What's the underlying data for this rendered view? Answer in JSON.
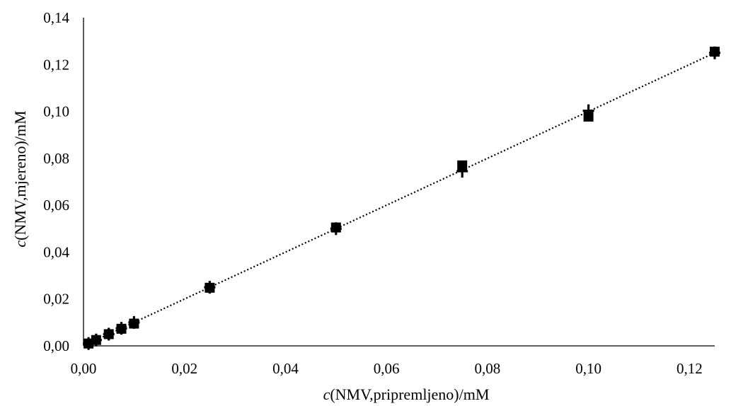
{
  "chart_data": {
    "type": "scatter",
    "title": "",
    "xlabel_prefix": "c",
    "xlabel_rest": "(NMV,pripremljeno)/mM",
    "ylabel_prefix": "c",
    "ylabel_rest": "(NMV,mjereno)/mM",
    "xlim": [
      0,
      0.125
    ],
    "ylim": [
      0,
      0.14
    ],
    "x_ticks": [
      0,
      0.02,
      0.04,
      0.06,
      0.08,
      0.1,
      0.12
    ],
    "x_tick_labels": [
      "0,00",
      "0,02",
      "0,04",
      "0,06",
      "0,08",
      "0,10",
      "0,12"
    ],
    "y_ticks": [
      0,
      0.02,
      0.04,
      0.06,
      0.08,
      0.1,
      0.12,
      0.14
    ],
    "y_tick_labels": [
      "0,00",
      "0,02",
      "0,04",
      "0,06",
      "0,08",
      "0,10",
      "0,12",
      "0,14"
    ],
    "grid": false,
    "legend": "none",
    "colors": {
      "marker": "#000000",
      "trendline": "#000000"
    },
    "series": [
      {
        "marker": "square",
        "x": [
          0.001,
          0.0025,
          0.005,
          0.0075,
          0.01,
          0.025,
          0.05,
          0.075,
          0.1,
          0.125
        ],
        "y": [
          0.001,
          0.0025,
          0.005,
          0.0073,
          0.0095,
          0.0248,
          0.0505,
          0.077,
          0.0978,
          0.1255
        ]
      },
      {
        "marker": "plus",
        "x": [
          0.001,
          0.0025,
          0.005,
          0.0075,
          0.01,
          0.025,
          0.05,
          0.075,
          0.1,
          0.125
        ],
        "y": [
          0.001,
          0.0025,
          0.005,
          0.0075,
          0.01,
          0.025,
          0.05,
          0.0745,
          0.1003,
          0.125
        ]
      }
    ],
    "trendline": {
      "style": "dotted",
      "x": [
        0,
        0.125
      ],
      "y": [
        0,
        0.125
      ]
    }
  }
}
